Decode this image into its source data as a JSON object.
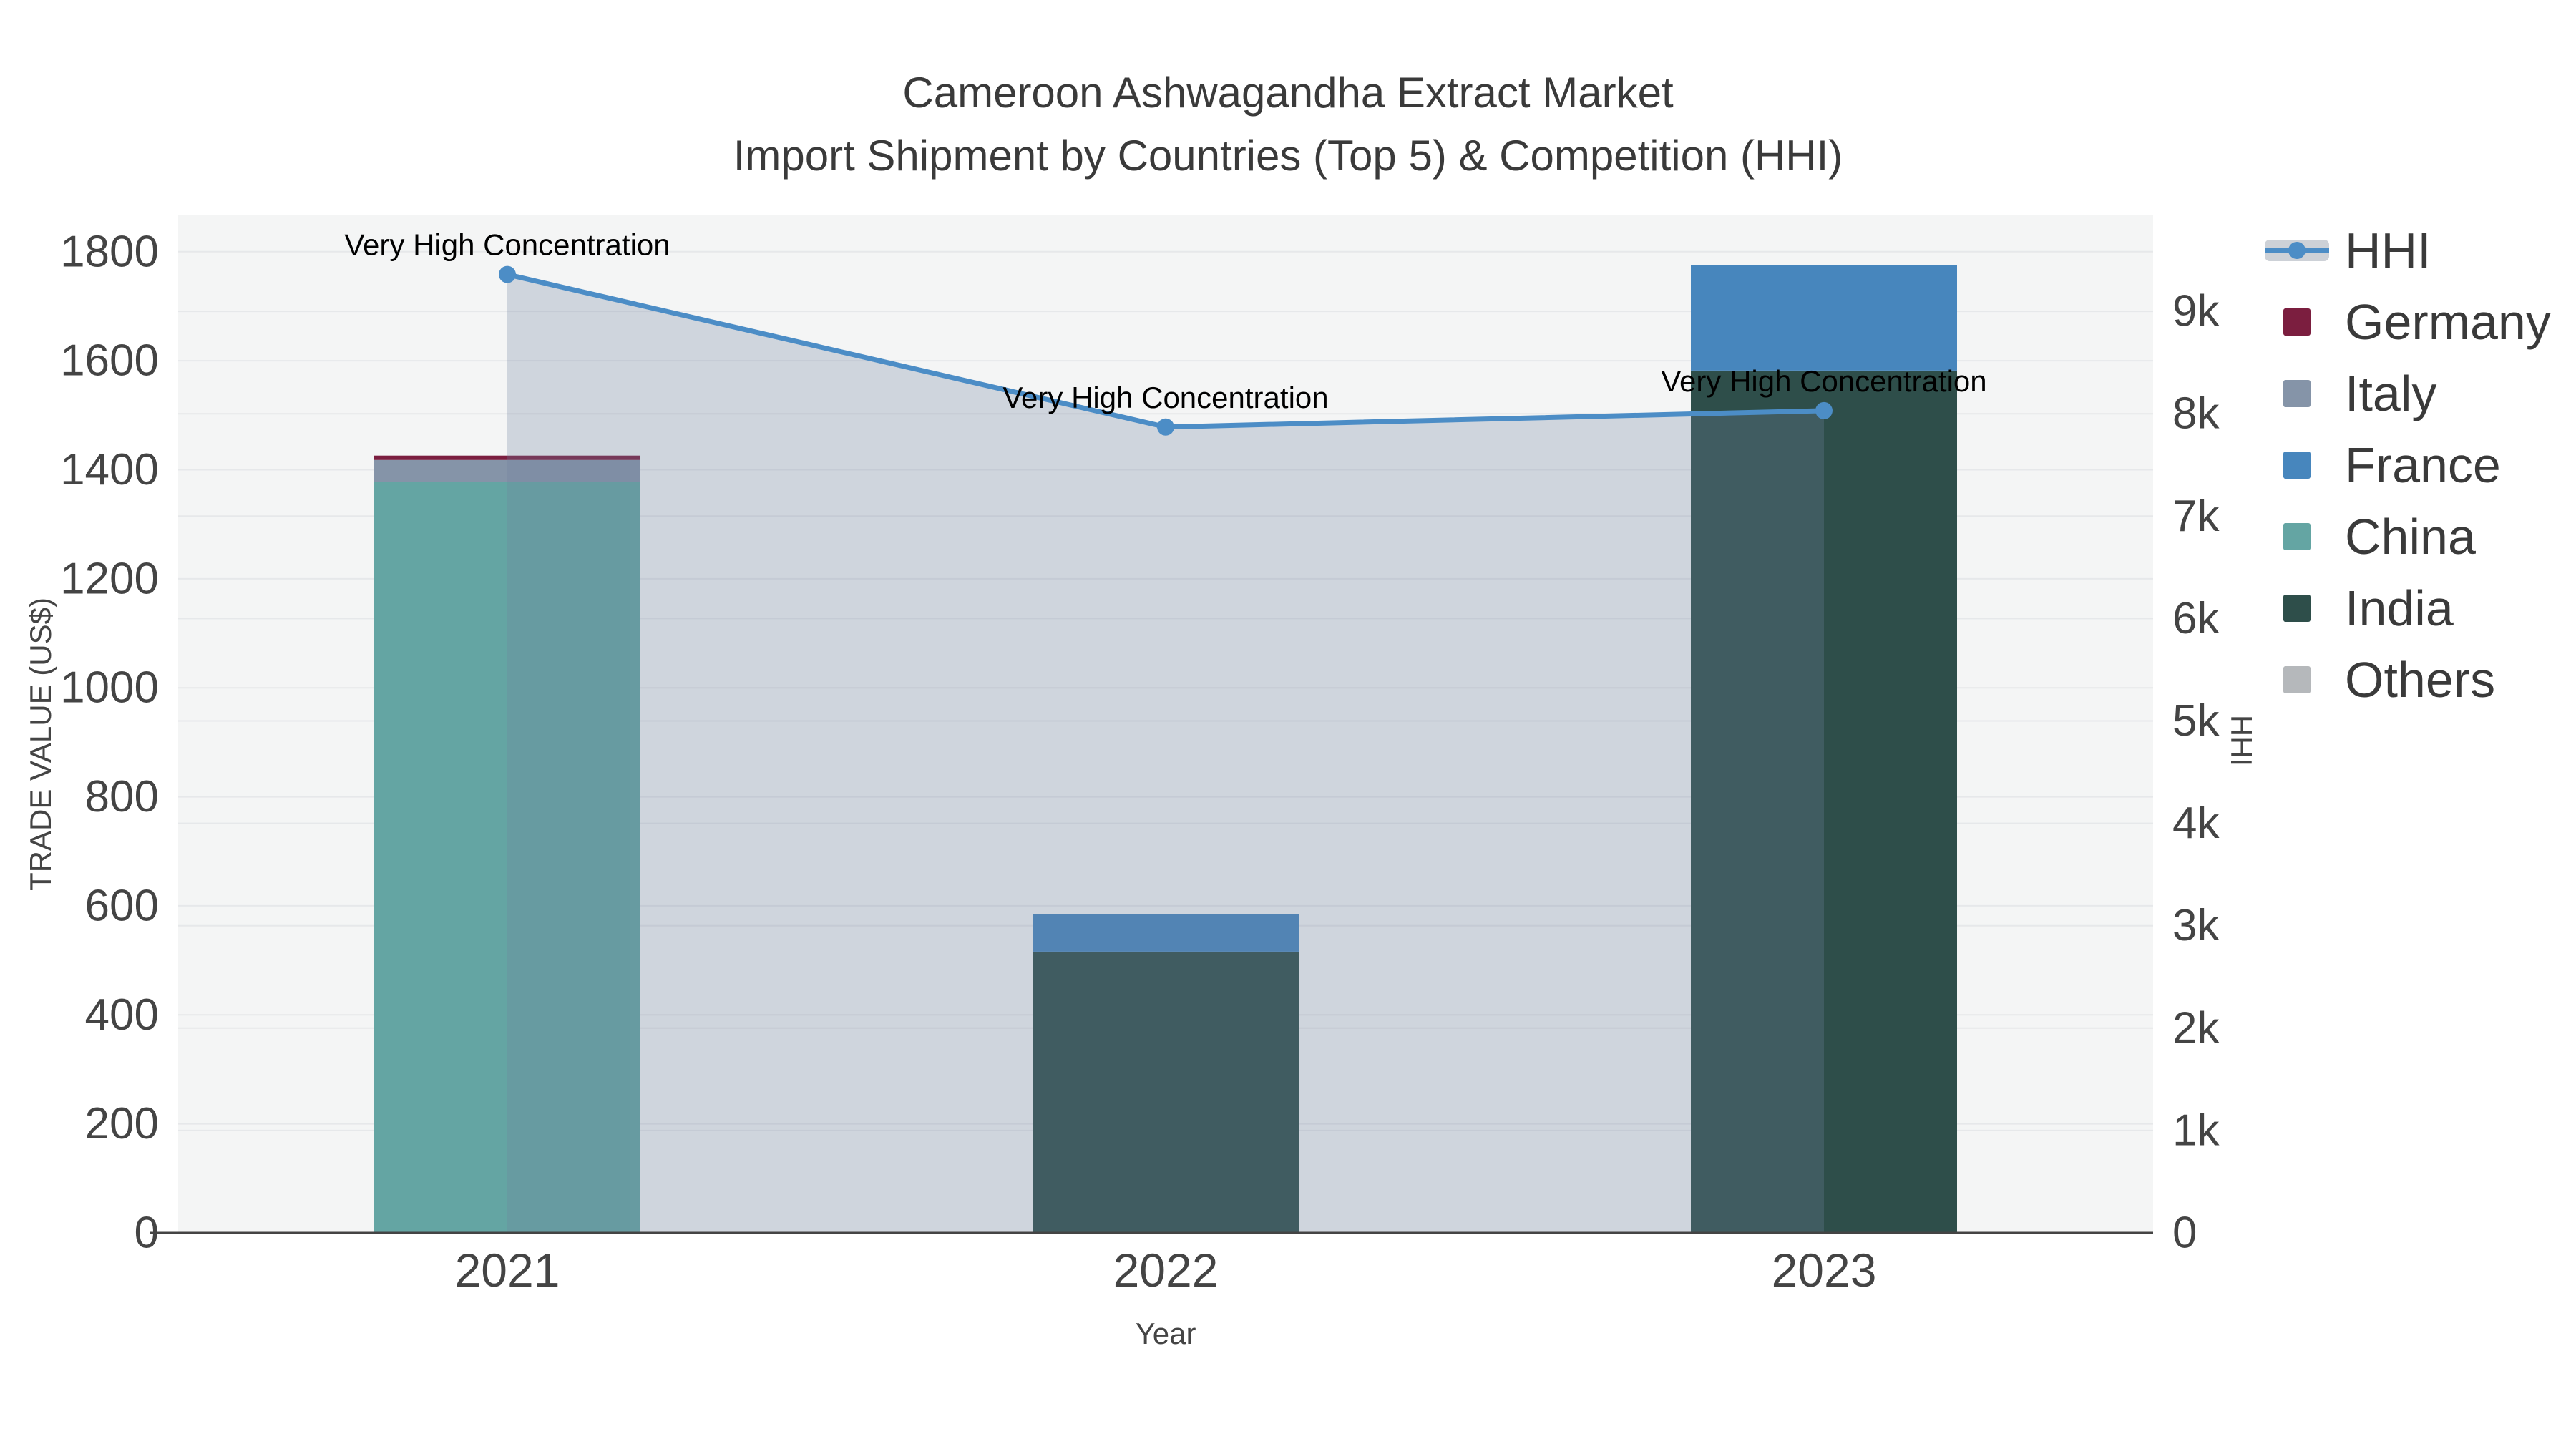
{
  "page": {
    "background": "#ffffff"
  },
  "chart_data": {
    "type": "bar+line",
    "title_line1": "Cameroon Ashwagandha Extract Market",
    "title_line2": "Import Shipment by Countries (Top 5) & Competition (HHI)",
    "xlabel": "Year",
    "categories": [
      "2021",
      "2022",
      "2023"
    ],
    "y_left": {
      "label": "TRADE VALUE (US$)",
      "tick_values": [
        0,
        200,
        400,
        600,
        800,
        1000,
        1200,
        1400,
        1600,
        1800
      ],
      "tick_labels": [
        "0",
        "200",
        "400",
        "600",
        "800",
        "1000",
        "1200",
        "1400",
        "1600",
        "1800"
      ],
      "range": [
        0,
        1868
      ],
      "grid": true
    },
    "y_right": {
      "label": "HHI",
      "tick_values": [
        0,
        1000,
        2000,
        3000,
        4000,
        5000,
        6000,
        7000,
        8000,
        9000
      ],
      "tick_labels": [
        "0",
        "1k",
        "2k",
        "3k",
        "4k",
        "5k",
        "6k",
        "7k",
        "8k",
        "9k"
      ],
      "range": [
        0,
        9944
      ],
      "grid": true
    },
    "bar_series": [
      {
        "name": "India",
        "color": "#2E4E4A",
        "values": [
          0,
          516,
          1582
        ]
      },
      {
        "name": "China",
        "color": "#64A5A3",
        "values": [
          1378,
          0,
          0
        ]
      },
      {
        "name": "France",
        "color": "#4786BD",
        "values": [
          0,
          69,
          193
        ]
      },
      {
        "name": "Italy",
        "color": "#8594A8",
        "values": [
          40,
          0,
          0
        ]
      },
      {
        "name": "Germany",
        "color": "#7B1E3F",
        "values": [
          8,
          0,
          0
        ]
      },
      {
        "name": "Others",
        "color": "#B5B8BB",
        "values": [
          0,
          0,
          0
        ]
      }
    ],
    "line_series": {
      "name": "HHI",
      "color": "#4C8DC6",
      "fill_color": "rgba(110,128,158,0.28)",
      "legend_band_color": "#cdd1d7",
      "values": [
        9360,
        7870,
        8030
      ]
    },
    "annotations": [
      {
        "text": "Very High Concentration",
        "category_index": 0
      },
      {
        "text": "Very High Concentration",
        "category_index": 1
      },
      {
        "text": "Very High Concentration",
        "category_index": 2
      }
    ],
    "legend": [
      {
        "label": "HHI",
        "type": "line"
      },
      {
        "label": "Germany",
        "type": "box",
        "color": "#7B1E3F"
      },
      {
        "label": "Italy",
        "type": "box",
        "color": "#8594A8"
      },
      {
        "label": "France",
        "type": "box",
        "color": "#4786BD"
      },
      {
        "label": "China",
        "type": "box",
        "color": "#64A5A3"
      },
      {
        "label": "India",
        "type": "box",
        "color": "#2E4E4A"
      },
      {
        "label": "Others",
        "type": "box",
        "color": "#B5B8BB"
      }
    ],
    "style": {
      "plot_bg": "#f4f5f5",
      "grid_color": "#e6e8ea",
      "axis_line_color": "#444444",
      "tick_color": "#444444",
      "annotation_color": "#000000"
    },
    "legend_position": "right"
  }
}
